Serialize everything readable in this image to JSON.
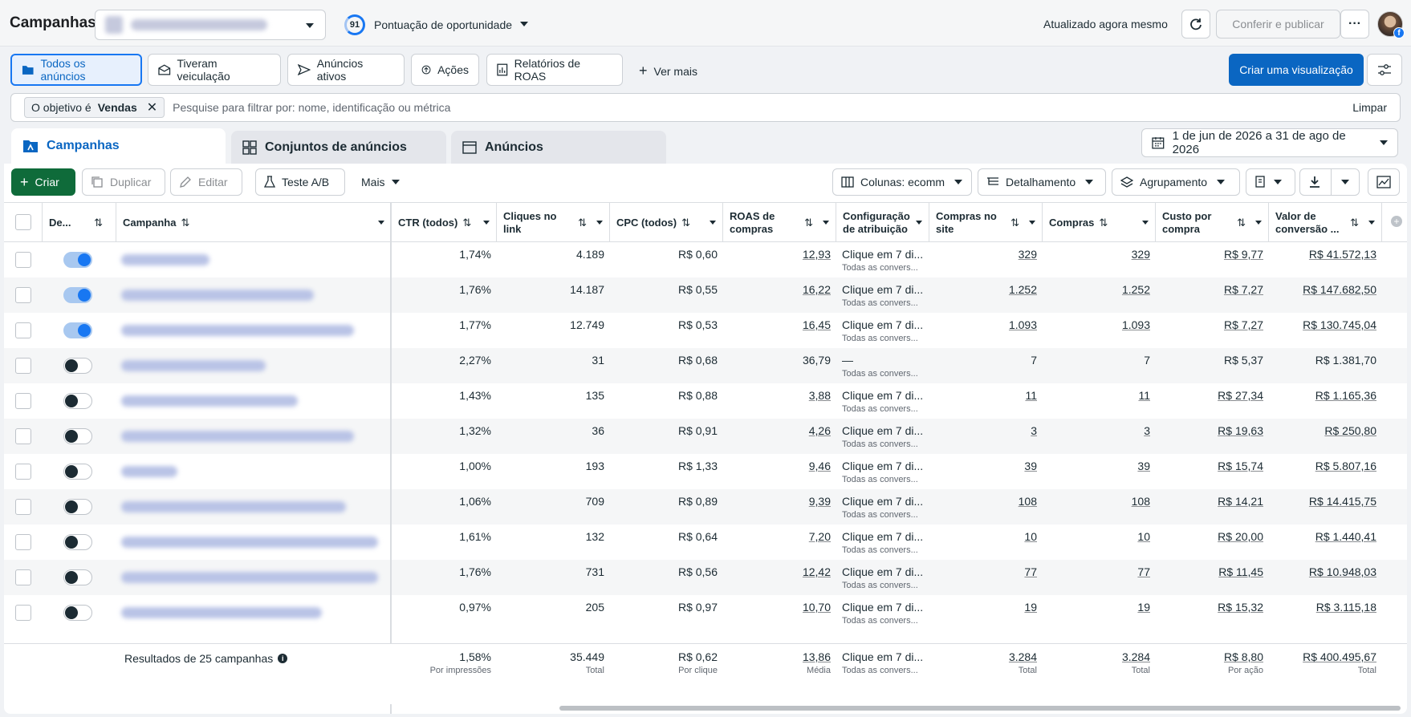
{
  "topbar": {
    "title": "Campanhas",
    "score_value": "91",
    "score_label": "Pontuação de oportunidade",
    "updated": "Atualizado agora mesmo",
    "publish": "Conferir e publicar",
    "more": "···"
  },
  "views": {
    "items": [
      {
        "label": "Todos os anúncios",
        "icon": "folder-icon"
      },
      {
        "label": "Tiveram veiculação",
        "icon": "envelope-icon"
      },
      {
        "label": "Anúncios ativos",
        "icon": "send-icon"
      },
      {
        "label": "Ações",
        "icon": "action-icon"
      },
      {
        "label": "Relatórios de ROAS",
        "icon": "report-icon"
      }
    ],
    "see_more": "Ver mais",
    "create_view": "Criar uma visualização"
  },
  "filter": {
    "chip_prefix": "O objetivo é",
    "chip_value": "Vendas",
    "placeholder": "Pesquise para filtrar por: nome, identificação ou métrica",
    "clear": "Limpar"
  },
  "tabs": {
    "campaigns": "Campanhas",
    "adsets": "Conjuntos de anúncios",
    "ads": "Anúncios"
  },
  "date_range": "1 de jun de 2026 a 31 de ago de 2026",
  "toolbar": {
    "create": "Criar",
    "duplicate": "Duplicar",
    "edit": "Editar",
    "ab_test": "Teste A/B",
    "more": "Mais",
    "columns": "Colunas: ecomm",
    "breakdown": "Detalhamento",
    "grouping": "Agrupamento"
  },
  "columns": {
    "delivery": "De...",
    "campaign": "Campanha",
    "ctr": "CTR (todos)",
    "link_clicks_1": "Cliques no",
    "link_clicks_2": "link",
    "cpc": "CPC (todos)",
    "roas_1": "ROAS de",
    "roas_2": "compras",
    "attr_1": "Configuração",
    "attr_2": "de atribuição",
    "site_1": "Compras no",
    "site_2": "site",
    "purchases": "Compras",
    "cpp_1": "Custo por",
    "cpp_2": "compra",
    "value_1": "Valor de",
    "value_2": "conversão ..."
  },
  "rows": [
    {
      "on": true,
      "ctr": "1,74%",
      "clicks": "4.189",
      "cpc": "R$ 0,60",
      "roas": "12,93",
      "attr": "Clique em 7 di...",
      "attr_sub": "Todas as convers...",
      "site": "329",
      "purchases": "329",
      "cpp": "R$ 9,77",
      "value": "R$ 41.572,13",
      "u": true
    },
    {
      "on": true,
      "ctr": "1,76%",
      "clicks": "14.187",
      "cpc": "R$ 0,55",
      "roas": "16,22",
      "attr": "Clique em 7 di...",
      "attr_sub": "Todas as convers...",
      "site": "1.252",
      "purchases": "1.252",
      "cpp": "R$ 7,27",
      "value": "R$ 147.682,50",
      "u": true
    },
    {
      "on": true,
      "ctr": "1,77%",
      "clicks": "12.749",
      "cpc": "R$ 0,53",
      "roas": "16,45",
      "attr": "Clique em 7 di...",
      "attr_sub": "Todas as convers...",
      "site": "1.093",
      "purchases": "1.093",
      "cpp": "R$ 7,27",
      "value": "R$ 130.745,04",
      "u": true
    },
    {
      "on": false,
      "ctr": "2,27%",
      "clicks": "31",
      "cpc": "R$ 0,68",
      "roas": "36,79",
      "attr": "—",
      "attr_sub": "Todas as convers...",
      "site": "7",
      "purchases": "7",
      "cpp": "R$ 5,37",
      "value": "R$ 1.381,70",
      "u": false
    },
    {
      "on": false,
      "ctr": "1,43%",
      "clicks": "135",
      "cpc": "R$ 0,88",
      "roas": "3,88",
      "attr": "Clique em 7 di...",
      "attr_sub": "Todas as convers...",
      "site": "11",
      "purchases": "11",
      "cpp": "R$ 27,34",
      "value": "R$ 1.165,36",
      "u": true
    },
    {
      "on": false,
      "ctr": "1,32%",
      "clicks": "36",
      "cpc": "R$ 0,91",
      "roas": "4,26",
      "attr": "Clique em 7 di...",
      "attr_sub": "Todas as convers...",
      "site": "3",
      "purchases": "3",
      "cpp": "R$ 19,63",
      "value": "R$ 250,80",
      "u": true
    },
    {
      "on": false,
      "ctr": "1,00%",
      "clicks": "193",
      "cpc": "R$ 1,33",
      "roas": "9,46",
      "attr": "Clique em 7 di...",
      "attr_sub": "Todas as convers...",
      "site": "39",
      "purchases": "39",
      "cpp": "R$ 15,74",
      "value": "R$ 5.807,16",
      "u": true
    },
    {
      "on": false,
      "ctr": "1,06%",
      "clicks": "709",
      "cpc": "R$ 0,89",
      "roas": "9,39",
      "attr": "Clique em 7 di...",
      "attr_sub": "Todas as convers...",
      "site": "108",
      "purchases": "108",
      "cpp": "R$ 14,21",
      "value": "R$ 14.415,75",
      "u": true
    },
    {
      "on": false,
      "ctr": "1,61%",
      "clicks": "132",
      "cpc": "R$ 0,64",
      "roas": "7,20",
      "attr": "Clique em 7 di...",
      "attr_sub": "Todas as convers...",
      "site": "10",
      "purchases": "10",
      "cpp": "R$ 20,00",
      "value": "R$ 1.440,41",
      "u": true
    },
    {
      "on": false,
      "ctr": "1,76%",
      "clicks": "731",
      "cpc": "R$ 0,56",
      "roas": "12,42",
      "attr": "Clique em 7 di...",
      "attr_sub": "Todas as convers...",
      "site": "77",
      "purchases": "77",
      "cpp": "R$ 11,45",
      "value": "R$ 10.948,03",
      "u": true
    },
    {
      "on": false,
      "ctr": "0,97%",
      "clicks": "205",
      "cpc": "R$ 0,97",
      "roas": "10,70",
      "attr": "Clique em 7 di...",
      "attr_sub": "Todas as convers...",
      "site": "19",
      "purchases": "19",
      "cpp": "R$ 15,32",
      "value": "R$ 3.115,18",
      "u": true
    }
  ],
  "totals": {
    "results": "Resultados de 25 campanhas",
    "ctr": "1,58%",
    "ctr_sub": "Por impressões",
    "clicks": "35.449",
    "clicks_sub": "Total",
    "cpc": "R$ 0,62",
    "cpc_sub": "Por clique",
    "roas": "13,86",
    "roas_sub": "Média",
    "attr": "Clique em 7 di...",
    "attr_sub": "Todas as convers...",
    "site": "3.284",
    "site_sub": "Total",
    "purchases": "3.284",
    "purchases_sub": "Total",
    "cpp": "R$ 8,80",
    "cpp_sub": "Por ação",
    "value": "R$ 400.495,67",
    "value_sub": "Total"
  }
}
